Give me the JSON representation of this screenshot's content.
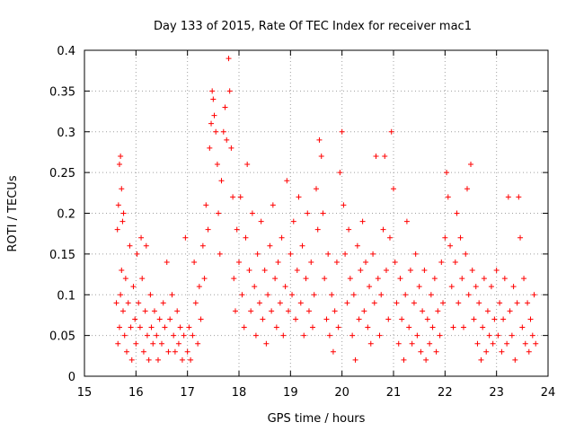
{
  "chart_data": {
    "type": "scatter",
    "title": "Day 133 of 2015, Rate Of TEC Index for receiver mac1",
    "xlabel": "GPS time / hours",
    "ylabel": "ROTI / TECUs",
    "xlim": [
      15,
      24
    ],
    "ylim": [
      0,
      0.4
    ],
    "x_ticks": [
      "15",
      "16",
      "17",
      "18",
      "19",
      "20",
      "21",
      "22",
      "23",
      "24"
    ],
    "y_ticks": [
      "0",
      "0.05",
      "0.1",
      "0.15",
      "0.2",
      "0.25",
      "0.3",
      "0.35",
      "0.4"
    ],
    "x_tick_values": [
      15,
      16,
      17,
      18,
      19,
      20,
      21,
      22,
      23,
      24
    ],
    "y_tick_values": [
      0,
      0.05,
      0.1,
      0.15,
      0.2,
      0.25,
      0.3,
      0.35,
      0.4
    ],
    "grid": true,
    "marker": "+",
    "marker_color": "#ff0000",
    "series": [
      {
        "name": "ROTI",
        "points": [
          [
            15.62,
            0.09
          ],
          [
            15.64,
            0.18
          ],
          [
            15.66,
            0.21
          ],
          [
            15.68,
            0.26
          ],
          [
            15.7,
            0.27
          ],
          [
            15.72,
            0.23
          ],
          [
            15.74,
            0.19
          ],
          [
            15.76,
            0.2
          ],
          [
            15.65,
            0.04
          ],
          [
            15.68,
            0.06
          ],
          [
            15.7,
            0.1
          ],
          [
            15.72,
            0.13
          ],
          [
            15.75,
            0.08
          ],
          [
            15.78,
            0.05
          ],
          [
            15.8,
            0.12
          ],
          [
            15.82,
            0.03
          ],
          [
            15.85,
            0.09
          ],
          [
            15.88,
            0.16
          ],
          [
            15.9,
            0.06
          ],
          [
            15.92,
            0.02
          ],
          [
            15.95,
            0.11
          ],
          [
            15.98,
            0.07
          ],
          [
            16.0,
            0.04
          ],
          [
            16.02,
            0.15
          ],
          [
            16.05,
            0.09
          ],
          [
            16.08,
            0.06
          ],
          [
            16.1,
            0.17
          ],
          [
            16.12,
            0.12
          ],
          [
            16.15,
            0.03
          ],
          [
            16.18,
            0.08
          ],
          [
            16.2,
            0.16
          ],
          [
            16.22,
            0.05
          ],
          [
            16.25,
            0.02
          ],
          [
            16.28,
            0.1
          ],
          [
            16.3,
            0.06
          ],
          [
            16.33,
            0.04
          ],
          [
            16.36,
            0.08
          ],
          [
            16.4,
            0.05
          ],
          [
            16.43,
            0.02
          ],
          [
            16.46,
            0.07
          ],
          [
            16.5,
            0.04
          ],
          [
            16.53,
            0.09
          ],
          [
            16.56,
            0.06
          ],
          [
            16.6,
            0.14
          ],
          [
            16.63,
            0.03
          ],
          [
            16.66,
            0.07
          ],
          [
            16.7,
            0.1
          ],
          [
            16.73,
            0.05
          ],
          [
            16.76,
            0.03
          ],
          [
            16.8,
            0.08
          ],
          [
            16.83,
            0.04
          ],
          [
            16.86,
            0.06
          ],
          [
            16.9,
            0.02
          ],
          [
            16.93,
            0.05
          ],
          [
            16.96,
            0.17
          ],
          [
            17.0,
            0.03
          ],
          [
            17.03,
            0.06
          ],
          [
            17.06,
            0.02
          ],
          [
            17.1,
            0.05
          ],
          [
            17.13,
            0.14
          ],
          [
            17.16,
            0.09
          ],
          [
            17.2,
            0.04
          ],
          [
            17.23,
            0.11
          ],
          [
            17.26,
            0.07
          ],
          [
            17.3,
            0.16
          ],
          [
            17.33,
            0.12
          ],
          [
            17.36,
            0.21
          ],
          [
            17.4,
            0.18
          ],
          [
            17.43,
            0.28
          ],
          [
            17.46,
            0.31
          ],
          [
            17.48,
            0.35
          ],
          [
            17.5,
            0.34
          ],
          [
            17.52,
            0.32
          ],
          [
            17.55,
            0.3
          ],
          [
            17.58,
            0.26
          ],
          [
            17.6,
            0.2
          ],
          [
            17.63,
            0.15
          ],
          [
            17.66,
            0.24
          ],
          [
            17.7,
            0.3
          ],
          [
            17.73,
            0.33
          ],
          [
            17.76,
            0.29
          ],
          [
            17.8,
            0.39
          ],
          [
            17.82,
            0.35
          ],
          [
            17.85,
            0.28
          ],
          [
            17.88,
            0.22
          ],
          [
            17.9,
            0.12
          ],
          [
            17.93,
            0.08
          ],
          [
            17.96,
            0.18
          ],
          [
            18.0,
            0.14
          ],
          [
            18.03,
            0.22
          ],
          [
            18.06,
            0.1
          ],
          [
            18.1,
            0.06
          ],
          [
            18.13,
            0.17
          ],
          [
            18.16,
            0.26
          ],
          [
            18.2,
            0.13
          ],
          [
            18.23,
            0.08
          ],
          [
            18.26,
            0.2
          ],
          [
            18.3,
            0.11
          ],
          [
            18.33,
            0.05
          ],
          [
            18.36,
            0.15
          ],
          [
            18.4,
            0.09
          ],
          [
            18.43,
            0.19
          ],
          [
            18.46,
            0.07
          ],
          [
            18.5,
            0.13
          ],
          [
            18.53,
            0.04
          ],
          [
            18.56,
            0.1
          ],
          [
            18.6,
            0.16
          ],
          [
            18.63,
            0.08
          ],
          [
            18.66,
            0.21
          ],
          [
            18.7,
            0.12
          ],
          [
            18.73,
            0.06
          ],
          [
            18.76,
            0.14
          ],
          [
            18.8,
            0.09
          ],
          [
            18.83,
            0.17
          ],
          [
            18.86,
            0.05
          ],
          [
            18.9,
            0.11
          ],
          [
            18.93,
            0.24
          ],
          [
            18.96,
            0.08
          ],
          [
            19.0,
            0.15
          ],
          [
            19.03,
            0.1
          ],
          [
            19.06,
            0.19
          ],
          [
            19.1,
            0.07
          ],
          [
            19.13,
            0.13
          ],
          [
            19.16,
            0.22
          ],
          [
            19.2,
            0.09
          ],
          [
            19.23,
            0.16
          ],
          [
            19.26,
            0.05
          ],
          [
            19.3,
            0.12
          ],
          [
            19.33,
            0.2
          ],
          [
            19.36,
            0.08
          ],
          [
            19.4,
            0.14
          ],
          [
            19.43,
            0.06
          ],
          [
            19.46,
            0.1
          ],
          [
            19.5,
            0.23
          ],
          [
            19.53,
            0.18
          ],
          [
            19.56,
            0.29
          ],
          [
            19.6,
            0.27
          ],
          [
            19.63,
            0.2
          ],
          [
            19.66,
            0.12
          ],
          [
            19.7,
            0.07
          ],
          [
            19.73,
            0.15
          ],
          [
            19.76,
            0.05
          ],
          [
            19.8,
            0.1
          ],
          [
            19.83,
            0.03
          ],
          [
            19.86,
            0.08
          ],
          [
            19.9,
            0.14
          ],
          [
            19.93,
            0.06
          ],
          [
            19.96,
            0.25
          ],
          [
            20.0,
            0.3
          ],
          [
            20.03,
            0.21
          ],
          [
            20.06,
            0.15
          ],
          [
            20.1,
            0.09
          ],
          [
            20.13,
            0.18
          ],
          [
            20.16,
            0.12
          ],
          [
            20.2,
            0.05
          ],
          [
            20.23,
            0.1
          ],
          [
            20.26,
            0.02
          ],
          [
            20.3,
            0.16
          ],
          [
            20.33,
            0.07
          ],
          [
            20.36,
            0.13
          ],
          [
            20.4,
            0.19
          ],
          [
            20.43,
            0.08
          ],
          [
            20.46,
            0.14
          ],
          [
            20.5,
            0.06
          ],
          [
            20.53,
            0.11
          ],
          [
            20.56,
            0.04
          ],
          [
            20.6,
            0.15
          ],
          [
            20.63,
            0.09
          ],
          [
            20.66,
            0.27
          ],
          [
            20.7,
            0.12
          ],
          [
            20.73,
            0.05
          ],
          [
            20.76,
            0.1
          ],
          [
            20.8,
            0.18
          ],
          [
            20.83,
            0.27
          ],
          [
            20.86,
            0.13
          ],
          [
            20.9,
            0.07
          ],
          [
            20.93,
            0.17
          ],
          [
            20.96,
            0.3
          ],
          [
            21.0,
            0.23
          ],
          [
            21.03,
            0.14
          ],
          [
            21.06,
            0.09
          ],
          [
            21.1,
            0.04
          ],
          [
            21.13,
            0.12
          ],
          [
            21.16,
            0.07
          ],
          [
            21.2,
            0.02
          ],
          [
            21.23,
            0.1
          ],
          [
            21.26,
            0.19
          ],
          [
            21.3,
            0.06
          ],
          [
            21.33,
            0.13
          ],
          [
            21.36,
            0.04
          ],
          [
            21.4,
            0.09
          ],
          [
            21.43,
            0.15
          ],
          [
            21.46,
            0.05
          ],
          [
            21.5,
            0.11
          ],
          [
            21.53,
            0.03
          ],
          [
            21.56,
            0.08
          ],
          [
            21.6,
            0.13
          ],
          [
            21.63,
            0.02
          ],
          [
            21.66,
            0.07
          ],
          [
            21.7,
            0.04
          ],
          [
            21.73,
            0.1
          ],
          [
            21.76,
            0.06
          ],
          [
            21.8,
            0.12
          ],
          [
            21.83,
            0.03
          ],
          [
            21.86,
            0.08
          ],
          [
            21.9,
            0.05
          ],
          [
            21.93,
            0.14
          ],
          [
            21.96,
            0.09
          ],
          [
            22.0,
            0.17
          ],
          [
            22.03,
            0.25
          ],
          [
            22.06,
            0.22
          ],
          [
            22.1,
            0.16
          ],
          [
            22.13,
            0.11
          ],
          [
            22.16,
            0.06
          ],
          [
            22.2,
            0.14
          ],
          [
            22.23,
            0.2
          ],
          [
            22.26,
            0.09
          ],
          [
            22.3,
            0.17
          ],
          [
            22.33,
            0.12
          ],
          [
            22.36,
            0.06
          ],
          [
            22.4,
            0.15
          ],
          [
            22.43,
            0.23
          ],
          [
            22.46,
            0.1
          ],
          [
            22.5,
            0.26
          ],
          [
            22.53,
            0.13
          ],
          [
            22.56,
            0.07
          ],
          [
            22.6,
            0.11
          ],
          [
            22.63,
            0.04
          ],
          [
            22.66,
            0.09
          ],
          [
            22.7,
            0.02
          ],
          [
            22.73,
            0.06
          ],
          [
            22.76,
            0.12
          ],
          [
            22.8,
            0.03
          ],
          [
            22.83,
            0.08
          ],
          [
            22.86,
            0.05
          ],
          [
            22.9,
            0.11
          ],
          [
            22.93,
            0.04
          ],
          [
            22.96,
            0.07
          ],
          [
            23.0,
            0.13
          ],
          [
            23.03,
            0.05
          ],
          [
            23.06,
            0.09
          ],
          [
            23.1,
            0.03
          ],
          [
            23.13,
            0.07
          ],
          [
            23.16,
            0.12
          ],
          [
            23.2,
            0.04
          ],
          [
            23.23,
            0.22
          ],
          [
            23.26,
            0.08
          ],
          [
            23.3,
            0.05
          ],
          [
            23.33,
            0.11
          ],
          [
            23.36,
            0.02
          ],
          [
            23.4,
            0.09
          ],
          [
            23.43,
            0.22
          ],
          [
            23.46,
            0.17
          ],
          [
            23.5,
            0.06
          ],
          [
            23.53,
            0.12
          ],
          [
            23.56,
            0.04
          ],
          [
            23.6,
            0.09
          ],
          [
            23.63,
            0.03
          ],
          [
            23.66,
            0.07
          ],
          [
            23.7,
            0.05
          ],
          [
            23.73,
            0.1
          ],
          [
            23.76,
            0.04
          ]
        ]
      }
    ]
  }
}
